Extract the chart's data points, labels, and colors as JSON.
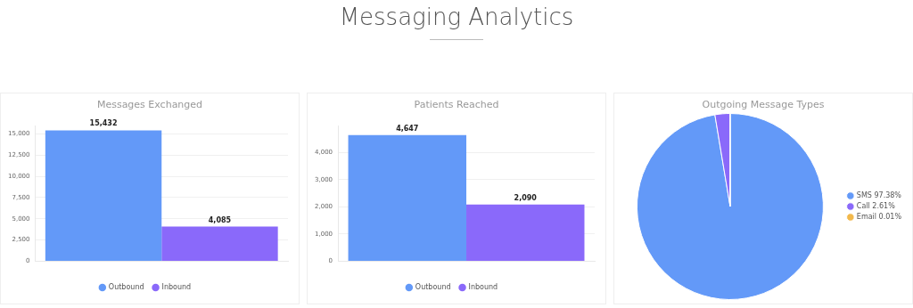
{
  "chart_data": [
    {
      "type": "other",
      "title": "Messaging Analytics"
    },
    {
      "type": "bar",
      "title": "Messages Exchanged",
      "categories": [
        null
      ],
      "series": [
        {
          "name": "Outbound",
          "color": "#6399f8",
          "values": [
            15432
          ],
          "value_labels": [
            "15,432"
          ]
        },
        {
          "name": "Inbound",
          "color": "#8a69fa",
          "values": [
            4085
          ],
          "value_labels": [
            "4,085"
          ]
        }
      ],
      "ylim": [
        0,
        16000
      ],
      "yticks": [
        0,
        {
          "value": 2500,
          "label": "2,500"
        },
        {
          "value": 5000,
          "label": "5,000"
        },
        {
          "value": 7500,
          "label": "7,500"
        },
        {
          "value": 10000,
          "label": "10,000"
        },
        {
          "value": 12500,
          "label": "12,500"
        },
        {
          "value": 15000,
          "label": "15,000"
        }
      ],
      "grid": "y",
      "legend": "bottom"
    },
    {
      "type": "bar",
      "title": "Patients Reached",
      "categories": [
        null
      ],
      "series": [
        {
          "name": "Outbound",
          "color": "#6399f8",
          "values": [
            4647
          ],
          "value_labels": [
            "4,647"
          ]
        },
        {
          "name": "Inbound",
          "color": "#8a69fa",
          "values": [
            2090
          ],
          "value_labels": [
            "2,090"
          ]
        }
      ],
      "ylim": [
        0,
        5000
      ],
      "yticks": [
        0,
        {
          "value": 1000,
          "label": "1,000"
        },
        {
          "value": 2000,
          "label": "2,000"
        },
        {
          "value": 3000,
          "label": "3,000"
        },
        {
          "value": 4000,
          "label": "4,000"
        }
      ],
      "grid": "y",
      "legend": "bottom"
    },
    {
      "type": "pie",
      "title": "Outgoing Message Types",
      "categories": [
        "SMS 97.38%",
        "Call 2.61%",
        "Email 0.01%"
      ],
      "values": [
        97.38,
        2.61,
        0.01
      ],
      "colors": [
        "#6399f8",
        "#8a69fa",
        "#f2b84b"
      ],
      "legend": "right"
    }
  ]
}
